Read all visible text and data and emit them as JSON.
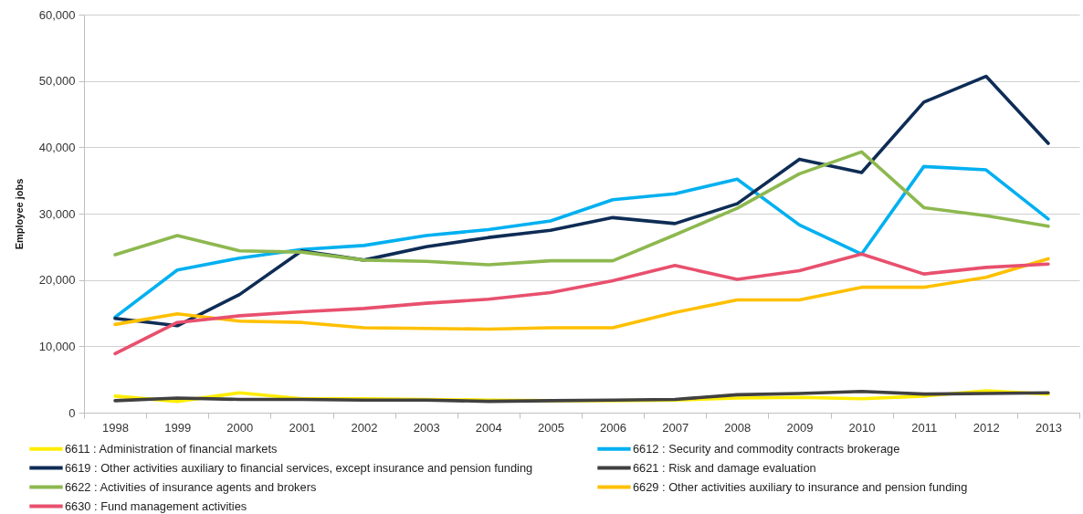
{
  "chart_data": {
    "type": "line",
    "ylabel": "Employee jobs",
    "categories": [
      "1998",
      "1999",
      "2000",
      "2001",
      "2002",
      "2003",
      "2004",
      "2005",
      "2006",
      "2007",
      "2008",
      "2009",
      "2010",
      "2011",
      "2012",
      "2013"
    ],
    "ylim": [
      0,
      60000
    ],
    "yticks": [
      {
        "value": 0,
        "label": "0"
      },
      {
        "value": 10000,
        "label": "10,000"
      },
      {
        "value": 20000,
        "label": "20,000"
      },
      {
        "value": 30000,
        "label": "30,000"
      },
      {
        "value": 40000,
        "label": "40,000"
      },
      {
        "value": 50000,
        "label": "50,000"
      },
      {
        "value": 60000,
        "label": "60,000"
      }
    ],
    "grid": "y",
    "legend": "bottom",
    "series": [
      {
        "name": "6611 : Administration of financial markets",
        "color": "#ffed00",
        "values": [
          2500,
          1700,
          3000,
          2100,
          2100,
          2000,
          1900,
          1800,
          1800,
          1900,
          2200,
          2300,
          2100,
          2500,
          3300,
          2800
        ]
      },
      {
        "name": "6612 : Security and commodity contracts brokerage",
        "color": "#00b0f0",
        "values": [
          14400,
          21500,
          23300,
          24600,
          25200,
          26700,
          27600,
          28900,
          32100,
          33000,
          35200,
          28300,
          23900,
          37100,
          36600,
          29200
        ]
      },
      {
        "name": "6619 : Other activities auxiliary to financial services, except insurance and pension funding",
        "color": "#0e2c55",
        "values": [
          14200,
          13100,
          17800,
          24400,
          23000,
          25000,
          26400,
          27500,
          29400,
          28500,
          31500,
          38200,
          36200,
          46800,
          50700,
          40600
        ]
      },
      {
        "name": "6621 : Risk and damage evaluation",
        "color": "#404040",
        "values": [
          1800,
          2200,
          2000,
          2000,
          1900,
          1900,
          1700,
          1800,
          1900,
          2000,
          2700,
          2900,
          3200,
          2800,
          2900,
          3000
        ]
      },
      {
        "name": "6622 : Activities of insurance agents and brokers",
        "color": "#8db84f",
        "values": [
          23800,
          26700,
          24400,
          24200,
          23000,
          22800,
          22300,
          22900,
          22900,
          26800,
          30800,
          36000,
          39300,
          30900,
          29700,
          28100
        ]
      },
      {
        "name": "6629 : Other activities auxiliary to insurance and pension funding",
        "color": "#ffc000",
        "values": [
          13300,
          14900,
          13800,
          13600,
          12800,
          12700,
          12600,
          12800,
          12800,
          15100,
          17000,
          17000,
          18900,
          18900,
          20400,
          23200
        ]
      },
      {
        "name": "6630 : Fund management activities",
        "color": "#e8506e",
        "values": [
          8900,
          13600,
          14600,
          15200,
          15700,
          16500,
          17100,
          18100,
          19900,
          22200,
          20100,
          21400,
          23900,
          20900,
          21900,
          22400
        ]
      }
    ]
  }
}
